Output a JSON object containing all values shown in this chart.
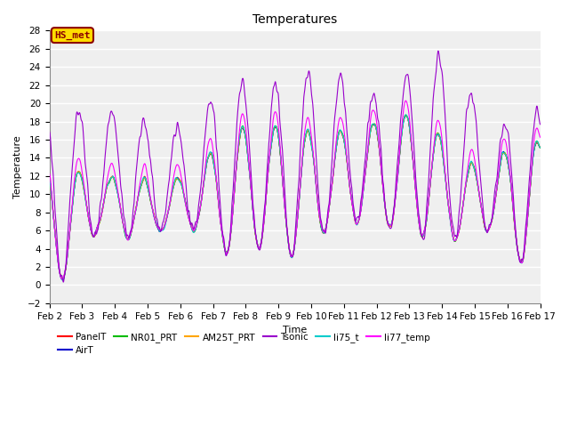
{
  "title": "Temperatures",
  "xlabel": "Time",
  "ylabel": "Temperature",
  "ylim": [
    -2,
    28
  ],
  "xlim_days": [
    2,
    17
  ],
  "annotation_text": "HS_met",
  "annotation_bg": "#FFDD00",
  "annotation_border": "#8B0000",
  "plot_bg": "#EFEFEF",
  "fig_bg": "#FFFFFF",
  "series": [
    {
      "name": "PanelT",
      "color": "#FF0000",
      "lw": 0.8,
      "zorder": 3
    },
    {
      "name": "AirT",
      "color": "#0000CC",
      "lw": 0.8,
      "zorder": 3
    },
    {
      "name": "NR01_PRT",
      "color": "#00BB00",
      "lw": 0.8,
      "zorder": 3
    },
    {
      "name": "AM25T_PRT",
      "color": "#FFA500",
      "lw": 0.8,
      "zorder": 3
    },
    {
      "name": "Tsonic",
      "color": "#9900CC",
      "lw": 0.8,
      "zorder": 4
    },
    {
      "name": "li75_t",
      "color": "#00CCCC",
      "lw": 0.8,
      "zorder": 3
    },
    {
      "name": "li77_temp",
      "color": "#FF00FF",
      "lw": 0.8,
      "zorder": 3
    }
  ],
  "n_points": 2160,
  "seed": 42
}
